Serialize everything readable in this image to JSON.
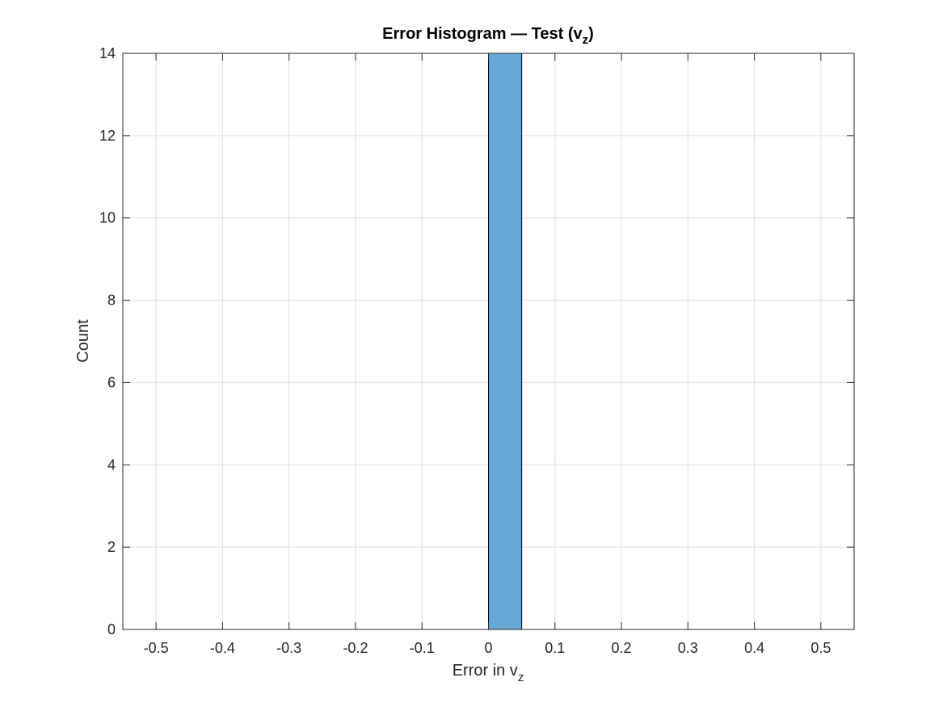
{
  "chart_data": {
    "type": "bar",
    "title_main": "Error Histogram — Test (v",
    "title_sub": "z",
    "title_end": ")",
    "xlabel_main": "Error in v",
    "xlabel_sub": "z",
    "ylabel": "Count",
    "xlim": [
      -0.55,
      0.55
    ],
    "ylim": [
      0,
      14
    ],
    "xticks": [
      -0.5,
      -0.4,
      -0.3,
      -0.2,
      -0.1,
      0,
      0.1,
      0.2,
      0.3,
      0.4,
      0.5
    ],
    "xtick_labels": [
      "-0.5",
      "-0.4",
      "-0.3",
      "-0.2",
      "-0.1",
      "0",
      "0.1",
      "0.2",
      "0.3",
      "0.4",
      "0.5"
    ],
    "yticks": [
      0,
      2,
      4,
      6,
      8,
      10,
      12,
      14
    ],
    "ytick_labels": [
      "0",
      "2",
      "4",
      "6",
      "8",
      "10",
      "12",
      "14"
    ],
    "grid": true,
    "bins": [
      {
        "x0": 0,
        "x1": 0.05,
        "count": 14
      }
    ],
    "bar_color": "#66a8d7",
    "edge_color": "#000000"
  }
}
